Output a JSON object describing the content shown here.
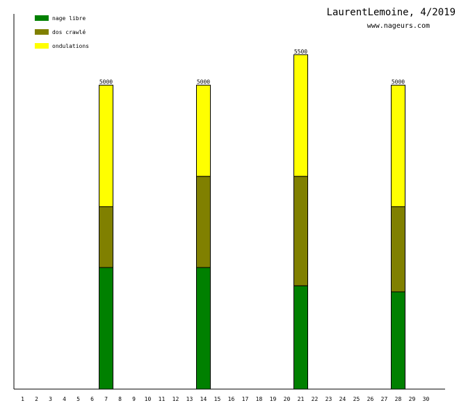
{
  "header": {
    "title": "LaurentLemoine, 4/2019",
    "subtitle": "www.nageurs.com"
  },
  "chart_data": {
    "type": "bar",
    "stacked": true,
    "categories": [
      "1",
      "2",
      "3",
      "4",
      "5",
      "6",
      "7",
      "8",
      "9",
      "10",
      "11",
      "12",
      "13",
      "14",
      "15",
      "16",
      "17",
      "18",
      "19",
      "20",
      "21",
      "22",
      "23",
      "24",
      "25",
      "26",
      "27",
      "28",
      "29",
      "30"
    ],
    "ylim": [
      0,
      6000
    ],
    "legend_position": "top-left",
    "series": [
      {
        "name": "nage libre",
        "color": "#008000",
        "values": [
          0,
          0,
          0,
          0,
          0,
          0,
          2000,
          0,
          0,
          0,
          0,
          0,
          0,
          2000,
          0,
          0,
          0,
          0,
          0,
          0,
          1700,
          0,
          0,
          0,
          0,
          0,
          0,
          1600,
          0,
          0
        ]
      },
      {
        "name": "dos crawlé",
        "color": "#808000",
        "values": [
          0,
          0,
          0,
          0,
          0,
          0,
          1000,
          0,
          0,
          0,
          0,
          0,
          0,
          1500,
          0,
          0,
          0,
          0,
          0,
          0,
          1800,
          0,
          0,
          0,
          0,
          0,
          0,
          1400,
          0,
          0
        ]
      },
      {
        "name": "ondulations",
        "color": "#ffff00",
        "values": [
          0,
          0,
          0,
          0,
          0,
          0,
          2000,
          0,
          0,
          0,
          0,
          0,
          0,
          1500,
          0,
          0,
          0,
          0,
          0,
          0,
          2000,
          0,
          0,
          0,
          0,
          0,
          0,
          2000,
          0,
          0
        ]
      }
    ],
    "totals": [
      {
        "category": "7",
        "label": "5000"
      },
      {
        "category": "14",
        "label": "5000"
      },
      {
        "category": "21",
        "label": "5500"
      },
      {
        "category": "28",
        "label": "5000"
      }
    ]
  }
}
